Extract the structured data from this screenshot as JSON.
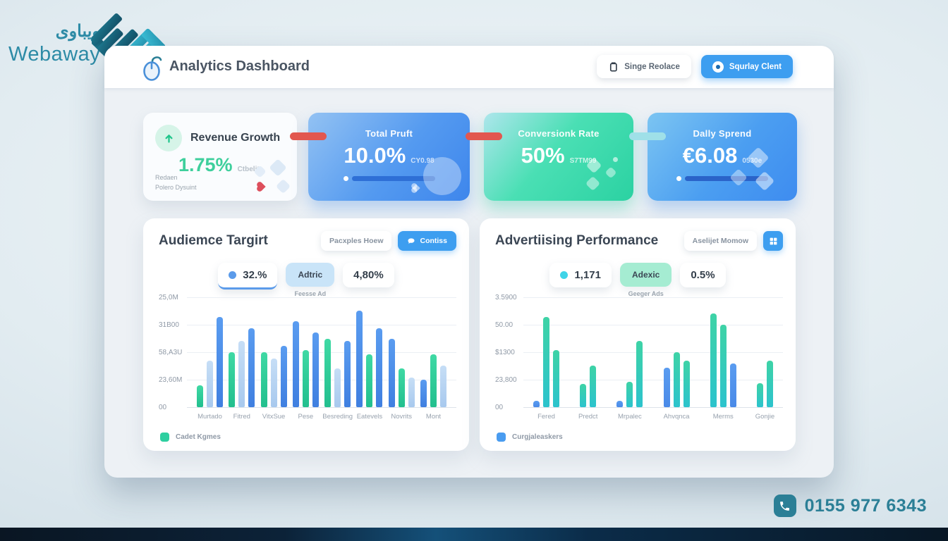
{
  "brand": {
    "arabic": "ويباوى",
    "name": "Webaway",
    "phone": "0155 977 6343",
    "teal": "#2b7f96"
  },
  "header": {
    "title": "Analytics Dashboard",
    "buttons": {
      "secondary": "Singe Reolace",
      "primary": "Squrlay Clent"
    }
  },
  "stat_cards": [
    {
      "title": "Revenue Growth",
      "value": "1.75%",
      "suffix": "Ctbelite",
      "footnote_1": "Redaen",
      "footnote_2": "Polero Dysuint"
    },
    {
      "title": "Total Pruft",
      "value": "10.0%",
      "suffix": "CY0.98"
    },
    {
      "title": "Conversionk Rate",
      "value": "50%",
      "suffix": "S7TM99"
    },
    {
      "title": "Dally Sprend",
      "value": "€6.08",
      "suffix": "0530e"
    }
  ],
  "panels": [
    {
      "title": "Audiemce Targirt",
      "toolbar_label": "Pacxples Hoew",
      "toolbar_button": "Contiss",
      "stat_1": "32.%",
      "filter_label": "Adtric",
      "filter_sub": "Feesse Ad",
      "stat_2": "4,80%",
      "dot_color": "#5b9bea",
      "filter_bg": "#c9e4f8"
    },
    {
      "title": "Advertiising Performance",
      "toolbar_label": "Aselijet Momow",
      "stat_1": "1,171",
      "filter_label": "Adexic",
      "filter_sub": "Geeger Ads",
      "stat_2": "0.5%",
      "dot_color": "#3fd4e8",
      "filter_bg": "#a5ecd2"
    }
  ],
  "chart_data": [
    {
      "type": "bar",
      "title": "Audiemce Targirt",
      "categories": [
        "Murtado",
        "Fitred",
        "VitxSue",
        "Pese",
        "Besreding",
        "Eatevels",
        "Novrits",
        "Mont"
      ],
      "y_ticks": [
        "25,0M",
        "31B00",
        "58,A3U",
        "23,60M",
        "00"
      ],
      "ylim": [
        0,
        100
      ],
      "grid": true,
      "legend_label": "Cadet Kgmes",
      "legend_color": "#2ecfa0",
      "colors": {
        "green": [
          "#3fd9a4",
          "#22bf8e"
        ],
        "pale": [
          "#c6def6",
          "#a8c9ee"
        ],
        "blue": [
          "#5a9cf0",
          "#3f7fe0"
        ]
      },
      "groups": [
        [
          {
            "c": "green",
            "v": 20
          },
          {
            "c": "pale",
            "v": 42
          },
          {
            "c": "blue",
            "v": 82
          }
        ],
        [
          {
            "c": "green",
            "v": 50
          },
          {
            "c": "pale",
            "v": 60
          },
          {
            "c": "blue",
            "v": 72
          }
        ],
        [
          {
            "c": "green",
            "v": 50
          },
          {
            "c": "pale",
            "v": 44
          },
          {
            "c": "blue",
            "v": 56
          }
        ],
        [
          {
            "c": "blue",
            "v": 78
          },
          {
            "c": "green",
            "v": 52
          },
          {
            "c": "blue",
            "v": 68
          }
        ],
        [
          {
            "c": "green",
            "v": 62
          },
          {
            "c": "pale",
            "v": 35
          },
          {
            "c": "blue",
            "v": 60
          }
        ],
        [
          {
            "c": "blue",
            "v": 88
          },
          {
            "c": "green",
            "v": 48
          },
          {
            "c": "blue",
            "v": 72
          }
        ],
        [
          {
            "c": "blue",
            "v": 62
          },
          {
            "c": "green",
            "v": 35
          },
          {
            "c": "pale",
            "v": 27
          }
        ],
        [
          {
            "c": "blue",
            "v": 25
          },
          {
            "c": "green",
            "v": 48
          },
          {
            "c": "pale",
            "v": 38
          }
        ]
      ]
    },
    {
      "type": "bar",
      "title": "Advertiising Performance",
      "categories": [
        "Fered",
        "Predct",
        "Mrpalec",
        "Ahvqnca",
        "Merms",
        "Gonjie"
      ],
      "y_ticks": [
        "3.5900",
        "50.00",
        "$1300",
        "23,800",
        "00"
      ],
      "ylim": [
        0,
        100
      ],
      "grid": true,
      "legend_label": "Curgjaleaskers",
      "legend_color": "#4a9cf0",
      "colors": {
        "teal": [
          "#3ed3a6",
          "#2cc3cd"
        ],
        "blue": [
          "#5a9cf0",
          "#4a8ae8"
        ]
      },
      "groups": [
        [
          {
            "c": "blue",
            "v": 6
          },
          {
            "c": "teal",
            "v": 82
          },
          {
            "c": "teal",
            "v": 52
          }
        ],
        [
          {
            "c": "teal",
            "v": 21
          },
          {
            "c": "teal",
            "v": 38
          }
        ],
        [
          {
            "c": "blue",
            "v": 6
          },
          {
            "c": "teal",
            "v": 23
          },
          {
            "c": "teal",
            "v": 60
          }
        ],
        [
          {
            "c": "blue",
            "v": 36
          },
          {
            "c": "teal",
            "v": 50
          },
          {
            "c": "teal",
            "v": 42
          }
        ],
        [
          {
            "c": "teal",
            "v": 85
          },
          {
            "c": "teal",
            "v": 75
          },
          {
            "c": "blue",
            "v": 40
          }
        ],
        [
          {
            "c": "teal",
            "v": 22
          },
          {
            "c": "teal",
            "v": 42
          }
        ]
      ]
    }
  ]
}
